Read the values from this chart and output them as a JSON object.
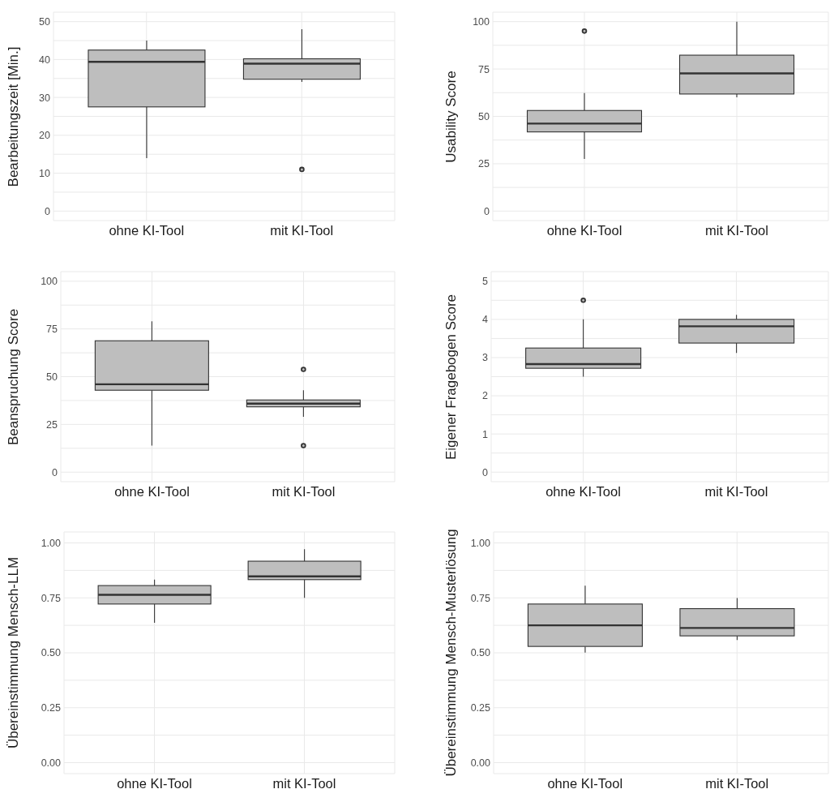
{
  "chart_data": [
    {
      "type": "box",
      "categories": [
        "ohne KI-Tool",
        "mit KI-Tool"
      ],
      "ylabel": "Bearbeitungszeit [Min.]",
      "ylim": [
        -2.5,
        52.5
      ],
      "yticks": [
        0,
        {
          "value": 5,
          "label": null
        },
        10,
        {
          "value": 15,
          "label": null
        },
        20,
        {
          "value": 25,
          "label": null
        },
        30,
        {
          "value": 35,
          "label": null
        },
        40,
        {
          "value": 45,
          "label": null
        },
        50
      ],
      "grid": true,
      "series": [
        {
          "color": "#bebebe",
          "boxes": [
            {
              "low": 14,
              "q1": 27.5,
              "median": 39.4,
              "q3": 42.5,
              "high": 45
            },
            {
              "low": 34.1,
              "q1": 34.8,
              "median": 38.9,
              "q3": 40.2,
              "high": 48,
              "outliers": [
                11
              ]
            }
          ]
        }
      ]
    },
    {
      "type": "box",
      "categories": [
        "ohne KI-Tool",
        "mit KI-Tool"
      ],
      "ylabel": "Usability Score",
      "ylim": [
        -5,
        105
      ],
      "yticks": [
        0,
        {
          "value": 12.5,
          "label": null
        },
        25,
        {
          "value": 37.5,
          "label": null
        },
        50,
        {
          "value": 62.5,
          "label": null
        },
        75,
        {
          "value": 87.5,
          "label": null
        },
        100
      ],
      "grid": true,
      "series": [
        {
          "color": "#bebebe",
          "boxes": [
            {
              "low": 27.5,
              "q1": 41.8,
              "median": 46.2,
              "q3": 53.1,
              "high": 62.3,
              "outliers": [
                95
              ]
            },
            {
              "low": 60.1,
              "q1": 61.8,
              "median": 72.7,
              "q3": 82.3,
              "high": 100
            }
          ]
        }
      ]
    },
    {
      "type": "box",
      "categories": [
        "ohne KI-Tool",
        "mit KI-Tool"
      ],
      "ylabel": "Beanspruchung Score",
      "ylim": [
        -5,
        105
      ],
      "yticks": [
        0,
        {
          "value": 12.5,
          "label": null
        },
        25,
        {
          "value": 37.5,
          "label": null
        },
        50,
        {
          "value": 62.5,
          "label": null
        },
        75,
        {
          "value": 87.5,
          "label": null
        },
        100
      ],
      "grid": true,
      "series": [
        {
          "color": "#bebebe",
          "boxes": [
            {
              "low": 13.9,
              "q1": 42.9,
              "median": 46,
              "q3": 68.8,
              "high": 79
            },
            {
              "low": 29,
              "q1": 34.2,
              "median": 35.9,
              "q3": 37.8,
              "high": 42.9,
              "outliers": [
                13.9,
                53.8
              ]
            }
          ]
        }
      ]
    },
    {
      "type": "box",
      "categories": [
        "ohne KI-Tool",
        "mit KI-Tool"
      ],
      "ylabel": "Eigener Fragebogen Score",
      "ylim": [
        -0.25,
        5.25
      ],
      "yticks": [
        0,
        {
          "value": 0.5,
          "label": null
        },
        1,
        {
          "value": 1.5,
          "label": null
        },
        2,
        {
          "value": 2.5,
          "label": null
        },
        3,
        {
          "value": 3.5,
          "label": null
        },
        4,
        {
          "value": 4.5,
          "label": null
        },
        5
      ],
      "grid": true,
      "series": [
        {
          "color": "#bebebe",
          "boxes": [
            {
              "low": 2.5,
              "q1": 2.72,
              "median": 2.83,
              "q3": 3.25,
              "high": 4,
              "outliers": [
                4.5
              ]
            },
            {
              "low": 3.12,
              "q1": 3.38,
              "median": 3.82,
              "q3": 4,
              "high": 4.12
            }
          ]
        }
      ]
    },
    {
      "type": "box",
      "categories": [
        "ohne KI-Tool",
        "mit KI-Tool"
      ],
      "ylabel": "Übereinstimmung Mensch-LLM",
      "ylim": [
        -0.05,
        1.05
      ],
      "yticks": [
        {
          "value": 0,
          "label": "0.00"
        },
        {
          "value": 0.125,
          "label": null
        },
        {
          "value": 0.25,
          "label": "0.25"
        },
        {
          "value": 0.375,
          "label": null
        },
        {
          "value": 0.5,
          "label": "0.50"
        },
        {
          "value": 0.625,
          "label": null
        },
        {
          "value": 0.75,
          "label": "0.75"
        },
        {
          "value": 0.875,
          "label": null
        },
        {
          "value": 1,
          "label": "1.00"
        }
      ],
      "grid": true,
      "series": [
        {
          "color": "#bebebe",
          "boxes": [
            {
              "low": 0.637,
              "q1": 0.722,
              "median": 0.764,
              "q3": 0.806,
              "high": 0.833
            },
            {
              "low": 0.75,
              "q1": 0.833,
              "median": 0.848,
              "q3": 0.917,
              "high": 0.972
            }
          ]
        }
      ]
    },
    {
      "type": "box",
      "categories": [
        "ohne KI-Tool",
        "mit KI-Tool"
      ],
      "ylabel": "Übereinstimmung Mensch-Musterlösung",
      "ylim": [
        -0.05,
        1.05
      ],
      "yticks": [
        {
          "value": 0,
          "label": "0.00"
        },
        {
          "value": 0.125,
          "label": null
        },
        {
          "value": 0.25,
          "label": "0.25"
        },
        {
          "value": 0.375,
          "label": null
        },
        {
          "value": 0.5,
          "label": "0.50"
        },
        {
          "value": 0.625,
          "label": null
        },
        {
          "value": 0.75,
          "label": "0.75"
        },
        {
          "value": 0.875,
          "label": null
        },
        {
          "value": 1,
          "label": "1.00"
        }
      ],
      "grid": true,
      "series": [
        {
          "color": "#bebebe",
          "boxes": [
            {
              "low": 0.501,
              "q1": 0.529,
              "median": 0.625,
              "q3": 0.722,
              "high": 0.805
            },
            {
              "low": 0.558,
              "q1": 0.577,
              "median": 0.613,
              "q3": 0.701,
              "high": 0.749
            }
          ]
        }
      ]
    }
  ]
}
